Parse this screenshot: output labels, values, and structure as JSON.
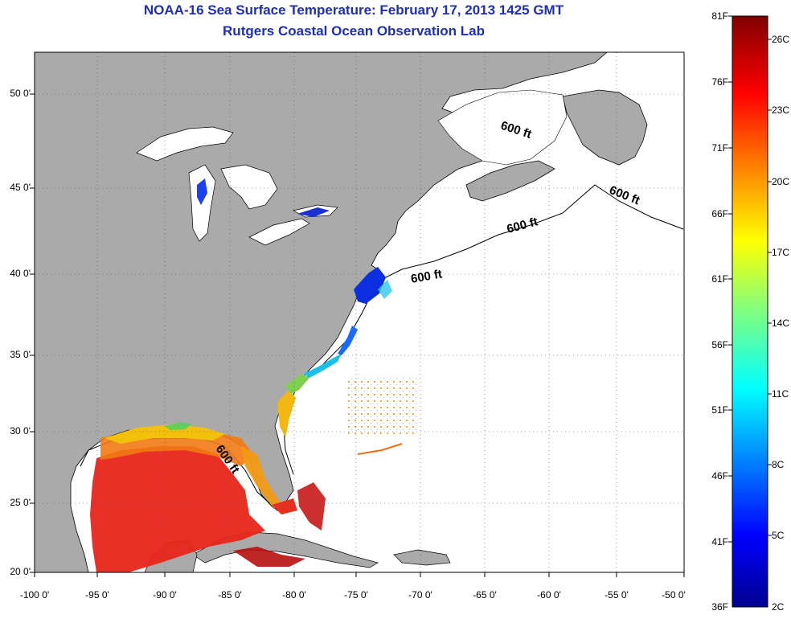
{
  "title": {
    "line1": "NOAA-16 Sea Surface Temperature:  February 17, 2013 1425 GMT",
    "line2": "Rutgers Coastal Ocean Observation Lab"
  },
  "map": {
    "lon_ticks": [
      "-100 0'",
      "-95 0'",
      "-90 0'",
      "-85 0'",
      "-80 0'",
      "-75 0'",
      "-70 0'",
      "-65 0'",
      "-60 0'",
      "-55 0'",
      "-50 0'"
    ],
    "lat_ticks": [
      "50 0'",
      "45 0'",
      "40 0'",
      "35 0'",
      "30 0'",
      "25 0'",
      "20 0'"
    ],
    "lon_range": [
      -100,
      -50
    ],
    "lat_range": [
      20,
      52.5
    ],
    "isobath_labels": [
      "600 ft",
      "600 ft",
      "600 ft",
      "600 ft",
      "600 ft"
    ],
    "land_color": "#aaaaaa",
    "water_color": "#ffffff"
  },
  "colorbar": {
    "f_labels": [
      "81F",
      "76F",
      "71F",
      "66F",
      "61F",
      "56F",
      "51F",
      "46F",
      "41F",
      "36F"
    ],
    "c_labels": [
      "26C",
      "23C",
      "20C",
      "17C",
      "14C",
      "11C",
      "8C",
      "5C",
      "2C"
    ],
    "colormap": "jet"
  }
}
